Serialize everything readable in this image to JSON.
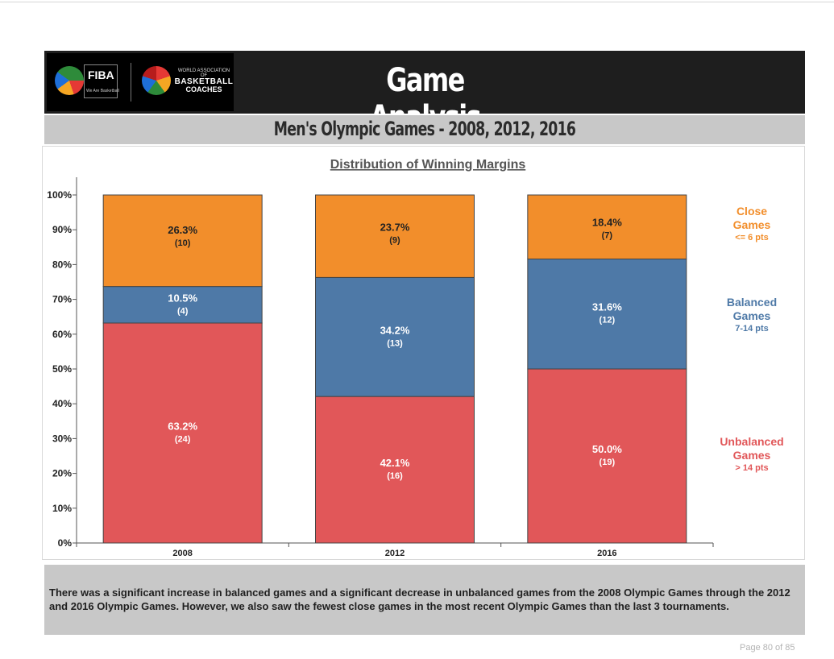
{
  "header": {
    "title": "Game Analysis",
    "fiba_label": "FIBA",
    "fiba_tagline": "We Are Basketball",
    "wabc_line1": "WORLD ASSOCIATION OF",
    "wabc_line2": "BASKETBALL",
    "wabc_line3": "COACHES"
  },
  "subtitle": "Men's Olympic Games - 2008, 2012, 2016",
  "chart_data": {
    "type": "bar",
    "stacked": true,
    "title": "Distribution of Winning Margins",
    "categories": [
      "2008",
      "2012",
      "2016"
    ],
    "ylim": [
      0,
      100
    ],
    "yticks": [
      "0%",
      "10%",
      "20%",
      "30%",
      "40%",
      "50%",
      "60%",
      "70%",
      "80%",
      "90%",
      "100%"
    ],
    "series": [
      {
        "name": "Unbalanced Games",
        "legend": [
          "Unbalanced",
          "Games",
          "> 14 pts"
        ],
        "color": "#e15759",
        "values": [
          63.2,
          42.1,
          50.0
        ],
        "labels": [
          "63.2%",
          "42.1%",
          "50.0%"
        ],
        "counts": [
          "(24)",
          "(16)",
          "(19)"
        ]
      },
      {
        "name": "Balanced Games",
        "legend": [
          "Balanced",
          "Games",
          "7-14 pts"
        ],
        "color": "#4e79a7",
        "values": [
          10.5,
          34.2,
          31.6
        ],
        "labels": [
          "10.5%",
          "34.2%",
          "31.6%"
        ],
        "counts": [
          "(4)",
          "(13)",
          "(12)"
        ]
      },
      {
        "name": "Close Games",
        "legend": [
          "Close",
          "Games",
          "<= 6 pts"
        ],
        "color": "#f28e2b",
        "values": [
          26.3,
          23.7,
          18.4
        ],
        "labels": [
          "26.3%",
          "23.7%",
          "18.4%"
        ],
        "counts": [
          "(10)",
          "(9)",
          "(7)"
        ]
      }
    ]
  },
  "note": "There was a significant increase in balanced games and a significant decrease in unbalanced games from the 2008 Olympic Games through the 2012 and 2016 Olympic Games. However, we also saw the fewest close games in the most recent Olympic Games than the last 3 tournaments.",
  "page_label": "Page 80 of 85"
}
